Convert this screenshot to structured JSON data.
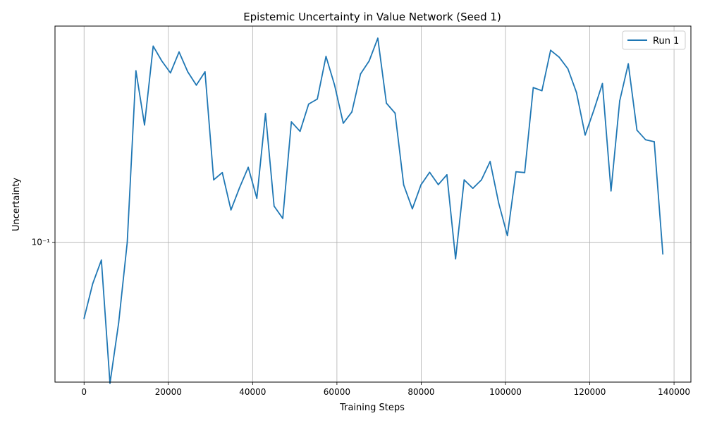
{
  "chart_data": {
    "type": "line",
    "title": "Epistemic Uncertainty in Value Network (Seed 1)",
    "xlabel": "Training Steps",
    "ylabel": "Uncertainty",
    "yscale": "log",
    "xlim": [
      -6900,
      144000
    ],
    "ylim": [
      0.0265,
      0.78
    ],
    "xticks": [
      0,
      20000,
      40000,
      60000,
      80000,
      100000,
      120000,
      140000
    ],
    "xtick_labels": [
      "0",
      "20000",
      "40000",
      "60000",
      "80000",
      "100000",
      "120000",
      "140000"
    ],
    "yticks": [
      0.1
    ],
    "ytick_labels": [
      "10⁻¹"
    ],
    "grid": true,
    "legend_position": "top-right",
    "series": [
      {
        "name": "Run 1",
        "color": "#1f77b4",
        "x": [
          0,
          2050,
          4100,
          6150,
          8200,
          10250,
          12300,
          14350,
          16400,
          18450,
          20500,
          22550,
          24600,
          26650,
          28700,
          30750,
          32800,
          34850,
          36900,
          38950,
          41000,
          43050,
          45100,
          47150,
          49200,
          51250,
          53300,
          55350,
          57400,
          59450,
          61500,
          63550,
          65600,
          67650,
          69700,
          71750,
          73800,
          75850,
          77900,
          79950,
          82000,
          84050,
          86100,
          88150,
          90200,
          92250,
          94300,
          96350,
          98400,
          100450,
          102500,
          104550,
          106600,
          108650,
          110700,
          112750,
          114800,
          116850,
          118900,
          120950,
          123000,
          125050,
          127100,
          129150,
          131200,
          133250,
          135300,
          137350
        ],
        "y": [
          0.0485,
          0.0675,
          0.0845,
          0.0262,
          0.0465,
          0.1,
          0.51,
          0.305,
          0.645,
          0.56,
          0.5,
          0.61,
          0.505,
          0.445,
          0.505,
          0.181,
          0.194,
          0.136,
          0.168,
          0.204,
          0.152,
          0.34,
          0.141,
          0.1255,
          0.314,
          0.287,
          0.372,
          0.39,
          0.585,
          0.445,
          0.31,
          0.345,
          0.495,
          0.56,
          0.695,
          0.375,
          0.341,
          0.1725,
          0.1375,
          0.1725,
          0.1945,
          0.173,
          0.19,
          0.0855,
          0.181,
          0.167,
          0.181,
          0.2155,
          0.145,
          0.1065,
          0.1955,
          0.194,
          0.435,
          0.422,
          0.62,
          0.58,
          0.52,
          0.415,
          0.277,
          0.35,
          0.452,
          0.163,
          0.383,
          0.545,
          0.29,
          0.265,
          0.26,
          0.0895
        ]
      }
    ]
  }
}
